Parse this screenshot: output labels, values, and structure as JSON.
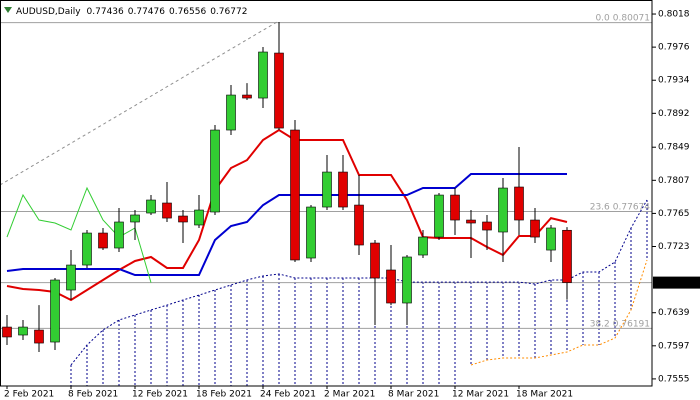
{
  "chart_data": {
    "type": "candlestick",
    "title": "AUDUSD,Daily",
    "categories": [
      "2 Feb 2021",
      null,
      null,
      null,
      "8 Feb 2021",
      null,
      null,
      null,
      "12 Feb 2021",
      null,
      null,
      null,
      "18 Feb 2021",
      null,
      null,
      null,
      "24 Feb 2021",
      null,
      null,
      null,
      "2 Mar 2021",
      null,
      null,
      null,
      "8 Mar 2021",
      null,
      null,
      null,
      "12 Mar 2021",
      null,
      null,
      null,
      "18 Mar 2021",
      null,
      null,
      null,
      null,
      null,
      null,
      null,
      null
    ],
    "open": [
      0.76208,
      0.76107,
      0.7617,
      0.76018,
      0.76678,
      0.76995,
      0.77401,
      0.77211,
      0.77541,
      0.77655,
      0.77782,
      0.77617,
      0.77503,
      0.77668,
      0.78708,
      0.79152,
      0.79114,
      0.79685,
      0.78708,
      0.77084,
      0.77731,
      0.78175,
      0.77756,
      0.77274,
      0.76932,
      0.76513,
      0.77122,
      0.7735,
      0.77883,
      0.77566,
      0.77541,
      0.77414,
      0.77985,
      0.77566,
      0.77185,
      0.77436,
      null,
      null,
      null,
      null,
      null
    ],
    "high": [
      0.76361,
      0.76297,
      0.76487,
      0.7683,
      0.77185,
      0.77439,
      0.77465,
      0.77718,
      0.77693,
      0.77883,
      0.78048,
      0.77693,
      0.77883,
      0.78772,
      0.79279,
      0.79304,
      0.79761,
      0.80079,
      0.78835,
      0.77756,
      0.78391,
      0.78391,
      0.78137,
      0.77312,
      0.77249,
      0.77122,
      0.77439,
      0.77909,
      0.77972,
      0.77693,
      0.7763,
      0.78099,
      0.78492,
      0.77718,
      0.77503,
      0.77476,
      null,
      null,
      null,
      null,
      null
    ],
    "low": [
      0.7598,
      0.76043,
      0.75891,
      0.75917,
      0.76551,
      0.76957,
      0.77185,
      0.7716,
      0.77312,
      0.7763,
      0.77541,
      0.77274,
      0.77465,
      0.7763,
      0.78645,
      0.79089,
      0.78987,
      0.78708,
      0.77033,
      0.77033,
      0.77693,
      0.77693,
      0.77122,
      0.76234,
      0.76487,
      0.76234,
      0.77084,
      0.77312,
      0.77376,
      0.77084,
      0.77185,
      0.77033,
      0.77376,
      0.77274,
      0.77033,
      0.76556,
      null,
      null,
      null,
      null,
      null
    ],
    "close": [
      0.76082,
      0.76208,
      0.76005,
      0.76805,
      0.76995,
      0.77401,
      0.77211,
      0.77541,
      0.7763,
      0.7782,
      0.77591,
      0.77541,
      0.77693,
      0.78708,
      0.79152,
      0.79114,
      0.79698,
      0.78733,
      0.77059,
      0.77731,
      0.78175,
      0.77731,
      0.77249,
      0.7683,
      0.76513,
      0.77097,
      0.7735,
      0.77883,
      0.77566,
      0.77528,
      0.77439,
      0.77972,
      0.77566,
      0.7735,
      0.77465,
      0.76772,
      null,
      null,
      null,
      null,
      null
    ],
    "up_color": "#32cd32",
    "down_color": "#e00000",
    "series": [
      {
        "color": "#e00000",
        "width": 2,
        "dash": "none",
        "values": [
          0.76729,
          0.76691,
          0.76678,
          0.76653,
          0.76551,
          0.76678,
          0.76805,
          0.76932,
          0.77046,
          0.77097,
          0.76957,
          0.76957,
          0.77312,
          0.77947,
          0.78226,
          0.78327,
          0.78581,
          0.78708,
          0.78581,
          0.78581,
          0.78581,
          0.78581,
          0.78137,
          0.78137,
          0.78137,
          0.7782,
          0.7735,
          0.77338,
          0.77338,
          0.77338,
          0.77224,
          0.77122,
          0.77363,
          0.77363,
          0.77591,
          0.77541,
          null,
          null,
          null,
          null,
          null
        ]
      },
      {
        "color": "#0000d0",
        "width": 2,
        "dash": "none",
        "values": [
          0.76919,
          0.76944,
          0.76944,
          0.76944,
          0.76944,
          0.76944,
          0.76944,
          0.76944,
          0.76868,
          0.76868,
          0.76868,
          0.76868,
          0.76868,
          0.77312,
          0.7749,
          0.77541,
          0.77756,
          0.77883,
          0.77883,
          0.77883,
          0.77883,
          0.77883,
          0.77883,
          0.77883,
          0.77883,
          0.77883,
          0.77972,
          0.77972,
          0.77972,
          0.7815,
          0.7815,
          0.7815,
          0.7815,
          0.7815,
          0.7815,
          0.7815,
          null,
          null,
          null,
          null,
          null
        ]
      },
      {
        "color": "#32cd32",
        "width": 1,
        "dash": "none",
        "values": [
          0.7735,
          0.77883,
          0.77566,
          0.77528,
          0.77439,
          0.77972,
          0.77566,
          0.7735,
          0.77465,
          0.76772,
          null,
          null,
          null,
          null,
          null,
          null,
          null,
          null,
          null,
          null,
          null,
          null,
          null,
          null,
          null,
          null,
          null,
          null,
          null,
          null,
          null,
          null,
          null,
          null,
          null,
          null,
          null,
          null,
          null,
          null,
          null
        ]
      },
      {
        "color": "#00008b",
        "width": 1,
        "dash": "2,2",
        "values": [
          null,
          null,
          null,
          null,
          0.75726,
          0.7598,
          0.7617,
          0.76297,
          0.76361,
          0.76424,
          0.76487,
          0.76551,
          0.76614,
          0.76678,
          0.76741,
          0.76805,
          0.76856,
          0.76881,
          0.7683,
          0.7683,
          0.7683,
          0.7683,
          0.7683,
          0.7683,
          0.7683,
          0.76779,
          0.76779,
          0.76779,
          0.76779,
          0.76779,
          0.76779,
          0.76779,
          0.76779,
          0.76754,
          0.76805,
          0.76805,
          0.76906,
          0.76906,
          0.77033,
          0.77465,
          0.7782
        ]
      },
      {
        "color": "#ff8c00",
        "width": 1,
        "dash": "2,2",
        "values": [
          null,
          null,
          null,
          null,
          null,
          null,
          null,
          null,
          null,
          null,
          null,
          null,
          null,
          null,
          null,
          null,
          null,
          null,
          null,
          null,
          null,
          null,
          null,
          null,
          null,
          null,
          null,
          null,
          null,
          0.75726,
          0.7579,
          0.75815,
          0.75815,
          0.75815,
          0.75853,
          0.75891,
          0.7598,
          0.7598,
          0.76069,
          0.76424,
          0.77059
        ]
      }
    ],
    "cloud": {
      "color": "#00008b",
      "series": [
        3,
        4
      ]
    },
    "fib_color": "#a0a0a0",
    "fib_levels": [
      {
        "level": "0.0",
        "value": 0.80071
      },
      {
        "level": "23.6",
        "value": 0.77674
      },
      {
        "level": "38.2",
        "value": 0.76191
      }
    ],
    "ylim": [
      0.7546,
      0.80358
    ],
    "yticks": [
      0.8018,
      0.7976,
      0.7934,
      0.7892,
      0.7849,
      0.7807,
      0.7765,
      0.7723,
      0.7639,
      0.7597,
      0.7555
    ]
  }
}
